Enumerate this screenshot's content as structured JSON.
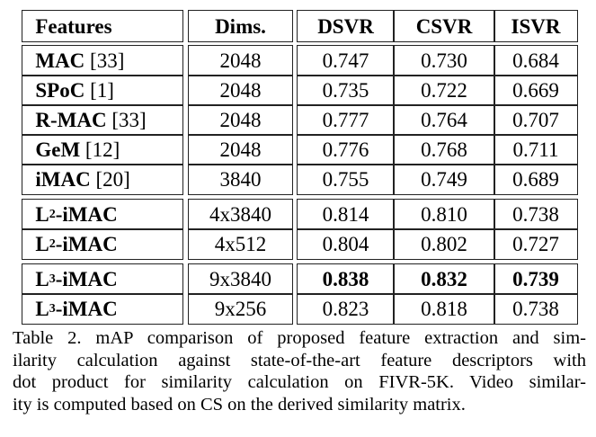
{
  "headers": [
    "Features",
    "Dims.",
    "DSVR",
    "CSVR",
    "ISVR"
  ],
  "rows": [
    {
      "name": "MAC",
      "sub": "",
      "ref": "[33]",
      "dims": "2048",
      "dsvr": "0.747",
      "csvr": "0.730",
      "isvr": "0.684"
    },
    {
      "name": "SPoC",
      "sub": "",
      "ref": "[1]",
      "dims": "2048",
      "dsvr": "0.735",
      "csvr": "0.722",
      "isvr": "0.669"
    },
    {
      "name": "R-MAC",
      "sub": "",
      "ref": "[33]",
      "dims": "2048",
      "dsvr": "0.777",
      "csvr": "0.764",
      "isvr": "0.707"
    },
    {
      "name": "GeM",
      "sub": "",
      "ref": "[12]",
      "dims": "2048",
      "dsvr": "0.776",
      "csvr": "0.768",
      "isvr": "0.711"
    },
    {
      "name": "iMAC",
      "sub": "",
      "ref": "[20]",
      "dims": "3840",
      "dsvr": "0.755",
      "csvr": "0.749",
      "isvr": "0.689"
    },
    {
      "name": "L",
      "sub": "2",
      "name2": "-iMAC",
      "dims": "4x3840",
      "dsvr": "0.814",
      "csvr": "0.810",
      "isvr": "0.738"
    },
    {
      "name": "L",
      "sub": "2",
      "name2": "-iMAC",
      "dims": "4x512",
      "dsvr": "0.804",
      "csvr": "0.802",
      "isvr": "0.727"
    },
    {
      "name": "L",
      "sub": "3",
      "name2": "-iMAC",
      "dims": "9x3840",
      "dsvr": "0.838",
      "csvr": "0.832",
      "isvr": "0.739",
      "bold": true
    },
    {
      "name": "L",
      "sub": "3",
      "name2": "-iMAC",
      "dims": "9x256",
      "dsvr": "0.823",
      "csvr": "0.818",
      "isvr": "0.738"
    }
  ],
  "caption_lines": [
    "Table 2. mAP comparison of proposed feature extraction and sim-",
    "ilarity calculation against state-of-the-art feature descriptors with",
    "dot product for similarity calculation on FIVR-5K. Video similar-",
    "ity is computed based on CS on the derived similarity matrix."
  ]
}
